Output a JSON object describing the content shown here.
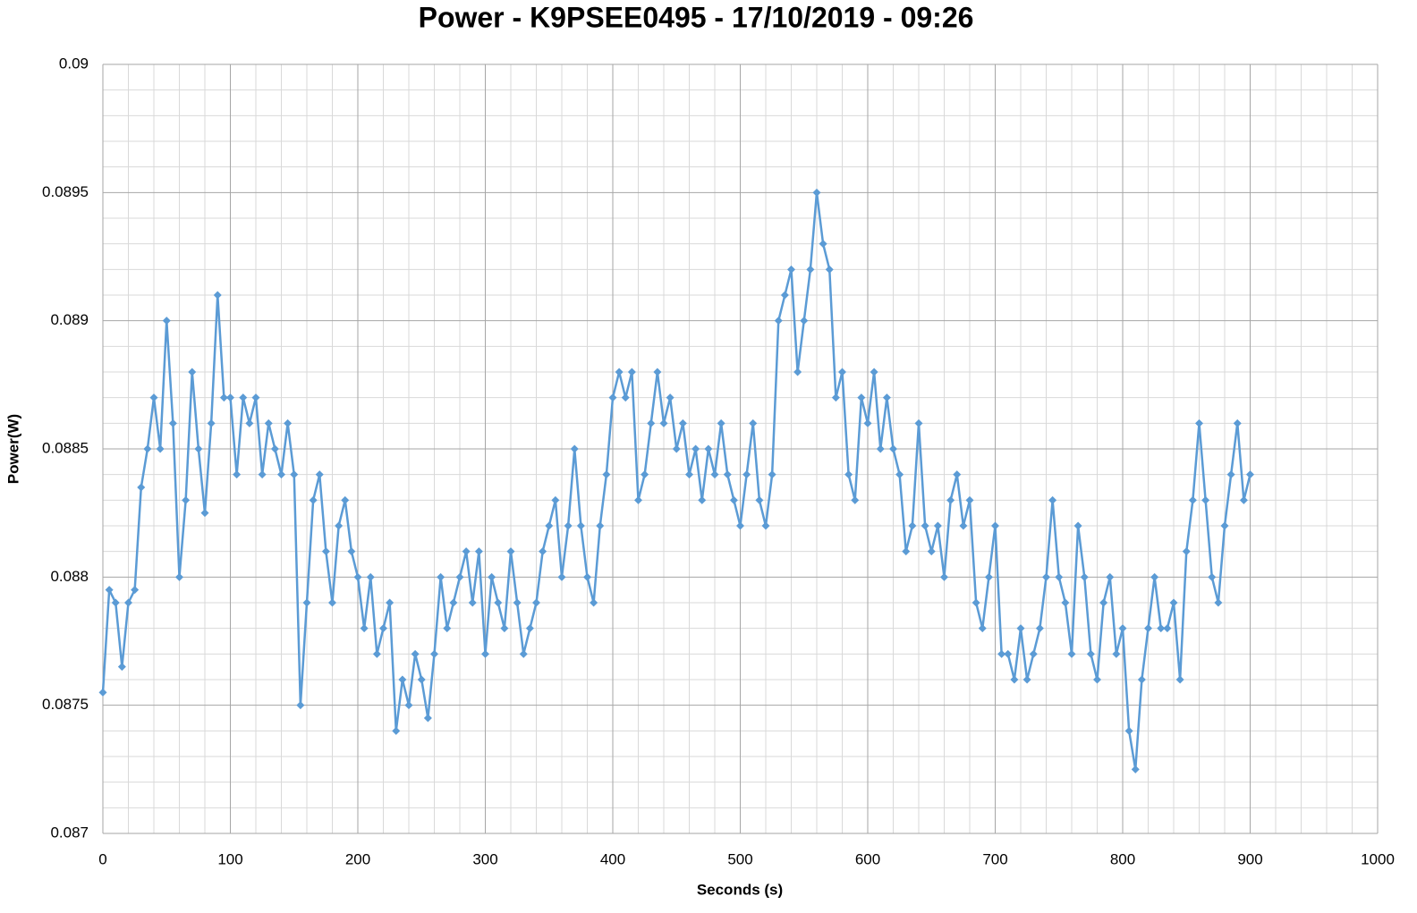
{
  "chart_data": {
    "type": "line",
    "title": "Power - K9PSEE0495 - 17/10/2019 - 09:26",
    "x_label": "Seconds (s)",
    "y_label": "Power(W)",
    "color": "#5b9bd5",
    "grid": true,
    "xlim": [
      0,
      1000
    ],
    "xticks": [
      0,
      100,
      200,
      300,
      400,
      500,
      600,
      700,
      800,
      900,
      1000
    ],
    "ylim": [
      0.087,
      0.09
    ],
    "yticks": [
      0.087,
      0.0875,
      0.088,
      0.0885,
      0.089,
      0.0895,
      0.09
    ],
    "x": [
      0,
      5,
      10,
      15,
      20,
      25,
      30,
      35,
      40,
      45,
      50,
      55,
      60,
      65,
      70,
      75,
      80,
      85,
      90,
      95,
      100,
      105,
      110,
      115,
      120,
      125,
      130,
      135,
      140,
      145,
      150,
      155,
      160,
      165,
      170,
      175,
      180,
      185,
      190,
      195,
      200,
      205,
      210,
      215,
      220,
      225,
      230,
      235,
      240,
      245,
      250,
      255,
      260,
      265,
      270,
      275,
      280,
      285,
      290,
      295,
      300,
      305,
      310,
      315,
      320,
      325,
      330,
      335,
      340,
      345,
      350,
      355,
      360,
      365,
      370,
      375,
      380,
      385,
      390,
      395,
      400,
      405,
      410,
      415,
      420,
      425,
      430,
      435,
      440,
      445,
      450,
      455,
      460,
      465,
      470,
      475,
      480,
      485,
      490,
      495,
      500,
      505,
      510,
      515,
      520,
      525,
      530,
      535,
      540,
      545,
      550,
      555,
      560,
      565,
      570,
      575,
      580,
      585,
      590,
      595,
      600,
      605,
      610,
      615,
      620,
      625,
      630,
      635,
      640,
      645,
      650,
      655,
      660,
      665,
      670,
      675,
      680,
      685,
      690,
      695,
      700,
      705,
      710,
      715,
      720,
      725,
      730,
      735,
      740,
      745,
      750,
      755,
      760,
      765,
      770,
      775,
      780,
      785,
      790,
      795,
      800,
      805,
      810,
      815,
      820,
      825,
      830,
      835,
      840,
      845,
      850,
      855,
      860,
      865,
      870,
      875,
      880,
      885,
      890,
      895,
      900
    ],
    "values": [
      0.08755,
      0.08795,
      0.0879,
      0.08765,
      0.0879,
      0.08795,
      0.08835,
      0.0885,
      0.0887,
      0.0885,
      0.089,
      0.0886,
      0.088,
      0.0883,
      0.0888,
      0.0885,
      0.08825,
      0.0886,
      0.0891,
      0.0887,
      0.0887,
      0.0884,
      0.0887,
      0.0886,
      0.0887,
      0.0884,
      0.0886,
      0.0885,
      0.0884,
      0.0886,
      0.0884,
      0.0875,
      0.0879,
      0.0883,
      0.0884,
      0.0881,
      0.0879,
      0.0882,
      0.0883,
      0.0881,
      0.088,
      0.0878,
      0.088,
      0.0877,
      0.0878,
      0.0879,
      0.0874,
      0.0876,
      0.0875,
      0.0877,
      0.0876,
      0.08745,
      0.0877,
      0.088,
      0.0878,
      0.0879,
      0.088,
      0.0881,
      0.0879,
      0.0881,
      0.0877,
      0.088,
      0.0879,
      0.0878,
      0.0881,
      0.0879,
      0.0877,
      0.0878,
      0.0879,
      0.0881,
      0.0882,
      0.0883,
      0.088,
      0.0882,
      0.0885,
      0.0882,
      0.088,
      0.0879,
      0.0882,
      0.0884,
      0.0887,
      0.0888,
      0.0887,
      0.0888,
      0.0883,
      0.0884,
      0.0886,
      0.0888,
      0.0886,
      0.0887,
      0.0885,
      0.0886,
      0.0884,
      0.0885,
      0.0883,
      0.0885,
      0.0884,
      0.0886,
      0.0884,
      0.0883,
      0.0882,
      0.0884,
      0.0886,
      0.0883,
      0.0882,
      0.0884,
      0.089,
      0.0891,
      0.0892,
      0.0888,
      0.089,
      0.0892,
      0.0895,
      0.0893,
      0.0892,
      0.0887,
      0.0888,
      0.0884,
      0.0883,
      0.0887,
      0.0886,
      0.0888,
      0.0885,
      0.0887,
      0.0885,
      0.0884,
      0.0881,
      0.0882,
      0.0886,
      0.0882,
      0.0881,
      0.0882,
      0.088,
      0.0883,
      0.0884,
      0.0882,
      0.0883,
      0.0879,
      0.0878,
      0.088,
      0.0882,
      0.0877,
      0.0877,
      0.0876,
      0.0878,
      0.0876,
      0.0877,
      0.0878,
      0.088,
      0.0883,
      0.088,
      0.0879,
      0.0877,
      0.0882,
      0.088,
      0.0877,
      0.0876,
      0.0879,
      0.088,
      0.0877,
      0.0878,
      0.0874,
      0.08725,
      0.0876,
      0.0878,
      0.088,
      0.0878,
      0.0878,
      0.0879,
      0.0876,
      0.0881,
      0.0883,
      0.0886,
      0.0883,
      0.088,
      0.0879,
      0.0882,
      0.0884,
      0.0886,
      0.0883,
      0.0884
    ]
  }
}
